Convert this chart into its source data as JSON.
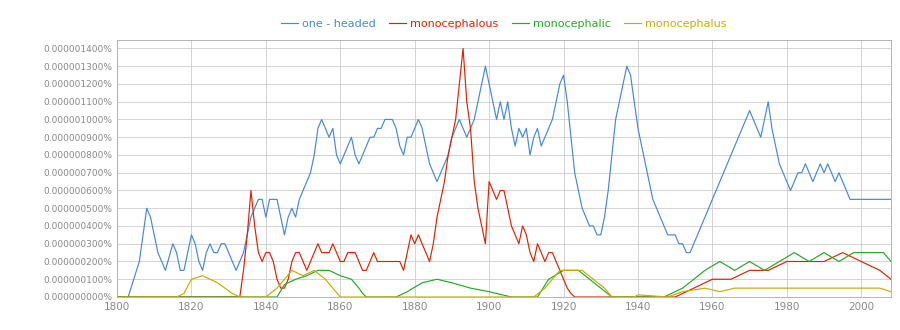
{
  "legend_labels": [
    "one - headed",
    "monocephalous",
    "monocephalic",
    "monocephalus"
  ],
  "colors": [
    "#4488DD",
    "#DD2200",
    "#22AA22",
    "#CCAA00"
  ],
  "background": "#FFFFFF",
  "grid_color": "#CCCCCC",
  "ytick_labels": [
    "0.000000000%",
    "0.000000100%",
    "0.000000200%",
    "0.000000300%",
    "0.000000400%",
    "0.000000500%",
    "0.000000600%",
    "0.000000700%",
    "0.000000800%",
    "0.000000900%",
    "0.000001000%",
    "0.000001100%",
    "0.000001200%",
    "0.000001300%",
    "0.000001400%"
  ],
  "ytick_values": [
    0,
    1e-07,
    2e-07,
    3e-07,
    4e-07,
    5e-07,
    6e-07,
    7e-07,
    8e-07,
    9e-07,
    1e-06,
    1.1e-06,
    1.2e-06,
    1.3e-06,
    1.4e-06
  ],
  "xticks": [
    1800,
    1820,
    1840,
    1860,
    1880,
    1900,
    1920,
    1940,
    1960,
    1980,
    2000
  ],
  "ylim": 1.45e-06,
  "year_start": 1800,
  "year_end": 2008
}
